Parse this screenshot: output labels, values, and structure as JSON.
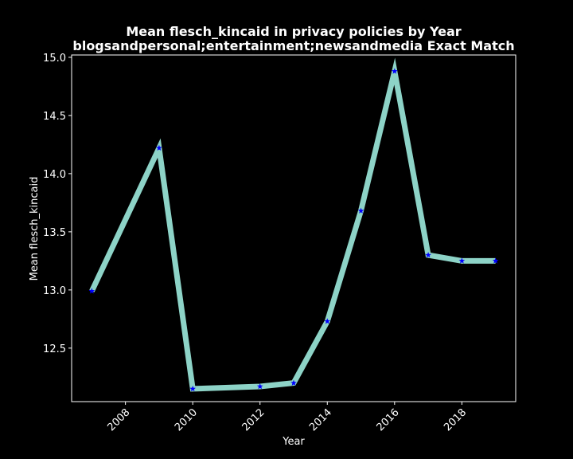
{
  "chart_data": {
    "type": "line",
    "title_line1": "Mean flesch_kincaid in privacy policies by Year",
    "title_line2": "blogsandpersonal;entertainment;newsandmedia Exact Match",
    "xlabel": "Year",
    "ylabel": "Mean flesch_kincaid",
    "xlim": [
      2006.4,
      2019.6
    ],
    "ylim": [
      12.04,
      15.02
    ],
    "x_ticks": [
      2008,
      2010,
      2012,
      2014,
      2016,
      2018
    ],
    "y_ticks": [
      12.5,
      13.0,
      13.5,
      14.0,
      14.5,
      15.0
    ],
    "x_tick_labels": [
      "2008",
      "2010",
      "2012",
      "2014",
      "2016",
      "2018"
    ],
    "y_tick_labels": [
      "12.5",
      "13.0",
      "13.5",
      "14.0",
      "14.5",
      "15.0"
    ],
    "grid": false,
    "series": [
      {
        "x": [
          2007,
          2009,
          2010,
          2012,
          2013,
          2014,
          2015,
          2016,
          2017,
          2018,
          2019
        ],
        "y": [
          12.99,
          14.22,
          12.15,
          12.17,
          12.2,
          12.73,
          13.68,
          14.88,
          13.3,
          13.25,
          13.25
        ],
        "line_color": "#8dd3c7",
        "marker_color": "#0000ff",
        "marker": "star"
      }
    ],
    "background_color": "#000000",
    "axes_color": "#ffffff"
  }
}
